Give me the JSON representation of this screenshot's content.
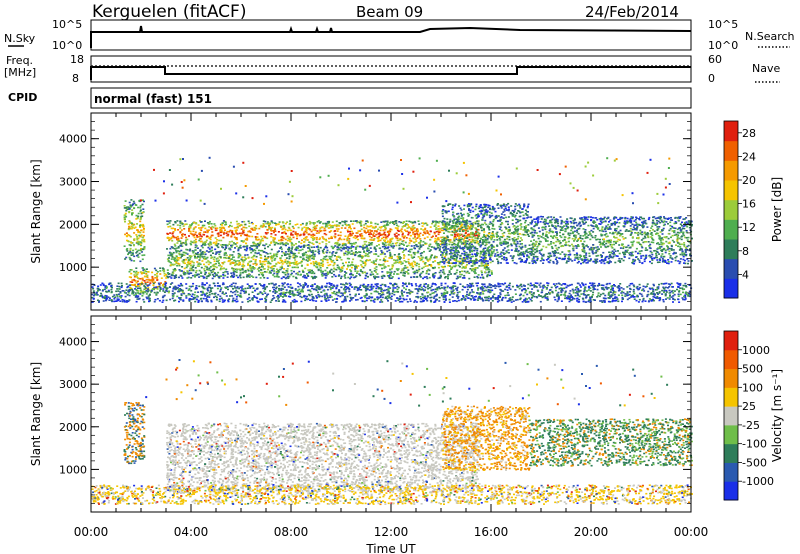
{
  "header": {
    "station": "Kerguelen (fitACF)",
    "beam": "Beam 09",
    "date": "24/Feb/2014"
  },
  "noise_panel": {
    "left_label": "N.Sky",
    "right_label": "N.Search",
    "left_ticks": [
      "10^5",
      "10^0"
    ],
    "right_ticks": [
      "10^5",
      "10^0"
    ]
  },
  "freq_panel": {
    "left_label_1": "Freq.",
    "left_label_2": "[MHz]",
    "right_label": "Nave",
    "left_ticks": [
      "18",
      "8"
    ],
    "right_ticks": [
      "60",
      "0"
    ]
  },
  "cpid": {
    "label": "CPID",
    "value": "normal (fast) 151"
  },
  "chart_data": [
    {
      "type": "heatmap",
      "title": "",
      "ylabel": "Slant Range [km]",
      "ylim": [
        0,
        4600
      ],
      "yticks": [
        1000,
        2000,
        3000,
        4000
      ],
      "x_range_hours": [
        0,
        24
      ],
      "colorbar": {
        "label": "Power [dB]",
        "ticks": [
          "4",
          "8",
          "12",
          "16",
          "20",
          "24",
          "28"
        ],
        "range": [
          0,
          30
        ],
        "colors": [
          "#1a2fe8",
          "#2a4db0",
          "#2e7d5a",
          "#4fae4f",
          "#9ccc3a",
          "#f5c400",
          "#f59a00",
          "#f06000",
          "#e0200f"
        ]
      },
      "features": [
        {
          "t0": 1.3,
          "t1": 2.1,
          "r0": 1150,
          "r1": 2600,
          "level": 0.55
        },
        {
          "t0": 3.0,
          "t1": 15.5,
          "r0": 1500,
          "r1": 2100,
          "level": 0.75
        },
        {
          "t0": 3.0,
          "t1": 16.0,
          "r0": 750,
          "r1": 1500,
          "level": 0.45
        },
        {
          "t0": 1.5,
          "t1": 3.0,
          "r0": 400,
          "r1": 1000,
          "level": 0.7
        },
        {
          "t0": 14.0,
          "t1": 17.5,
          "r0": 1100,
          "r1": 2500,
          "level": 0.35
        },
        {
          "t0": 17.5,
          "t1": 24.0,
          "r0": 1100,
          "r1": 2200,
          "level": 0.35
        },
        {
          "t0": 0.0,
          "t1": 24.0,
          "r0": 200,
          "r1": 650,
          "level": 0.25
        }
      ]
    },
    {
      "type": "heatmap",
      "title": "",
      "xlabel": "Time UT",
      "ylabel": "Slant Range [km]",
      "ylim": [
        0,
        4600
      ],
      "yticks": [
        1000,
        2000,
        3000,
        4000
      ],
      "xticks": [
        "00:00",
        "04:00",
        "08:00",
        "12:00",
        "16:00",
        "20:00",
        "00:00"
      ],
      "x_range_hours": [
        0,
        24
      ],
      "colorbar": {
        "label": "Velocity [m s⁻¹]",
        "ticks": [
          "1000",
          "500",
          "100",
          "25",
          "-25",
          "-100",
          "-500",
          "-1000"
        ],
        "colors": [
          "#1a2fe8",
          "#2a5ab0",
          "#2e7d5a",
          "#6fbe4a",
          "#c8c8c0",
          "#f5c400",
          "#f08a00",
          "#f05a00",
          "#e0200f"
        ]
      },
      "features": [
        {
          "t0": 1.3,
          "t1": 2.1,
          "r0": 1150,
          "r1": 2600,
          "kind": "orange-green"
        },
        {
          "t0": 3.0,
          "t1": 15.5,
          "r0": 500,
          "r1": 2100,
          "kind": "gray"
        },
        {
          "t0": 14.0,
          "t1": 17.5,
          "r0": 1000,
          "r1": 2500,
          "kind": "orange"
        },
        {
          "t0": 17.5,
          "t1": 24.0,
          "r0": 1100,
          "r1": 2200,
          "kind": "green"
        },
        {
          "t0": 0.0,
          "t1": 24.0,
          "r0": 200,
          "r1": 650,
          "kind": "mixed"
        }
      ]
    }
  ]
}
